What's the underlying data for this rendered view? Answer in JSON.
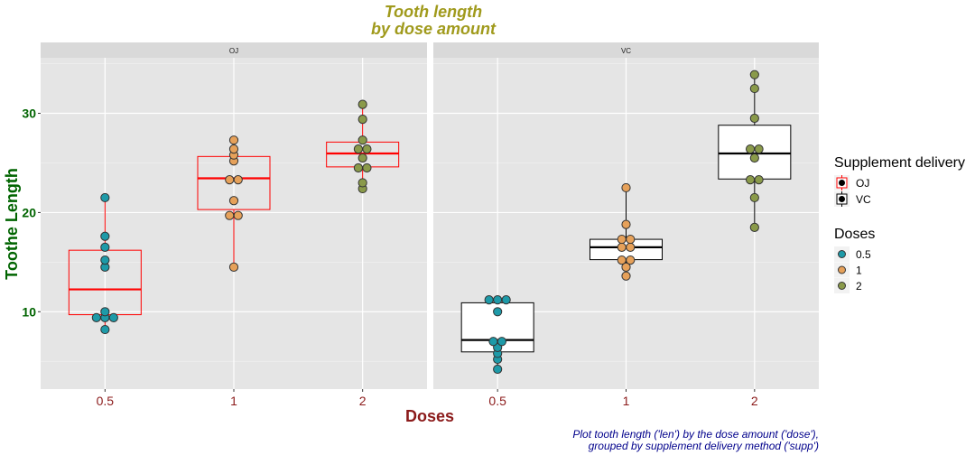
{
  "chart_data": {
    "type": "boxplot",
    "title_lines": [
      "Tooth length",
      "by dose amount"
    ],
    "title_color": "#A09A1C",
    "xlabel": "Doses",
    "xlabel_color": "#8B1A1A",
    "ylabel": "Toothe Length",
    "ylabel_color": "#006400",
    "ytick_color": "#006400",
    "xtick_color": "#8B1A1A",
    "caption_lines": [
      "Plot tooth length ('len') by the dose amount ('dose'),",
      "grouped by supplement delivery method ('supp')"
    ],
    "caption_color": "#00008B",
    "ylim": [
      2.2,
      35.6
    ],
    "yticks": [
      10,
      20,
      30
    ],
    "categories": [
      "0.5",
      "1",
      "2"
    ],
    "panel_background": "#E5E5E5",
    "grid": true,
    "legend_position": "right",
    "panels": [
      {
        "label": "OJ",
        "box_color": "#FF0000",
        "groups": [
          {
            "dose": "0.5",
            "values": [
              15.2,
              21.5,
              17.6,
              9.7,
              14.5,
              10.0,
              8.2,
              9.4,
              16.5,
              9.7
            ],
            "q1": 9.7,
            "median": 12.25,
            "q3": 16.2,
            "whisker_low": 8.2,
            "whisker_high": 21.5
          },
          {
            "dose": "1",
            "values": [
              19.7,
              23.3,
              23.6,
              26.4,
              20.0,
              25.2,
              25.8,
              21.2,
              14.5,
              27.3
            ],
            "q1": 20.3,
            "median": 23.45,
            "q3": 25.65,
            "whisker_low": 14.5,
            "whisker_high": 27.3
          },
          {
            "dose": "2",
            "values": [
              25.5,
              26.4,
              22.4,
              24.5,
              24.8,
              30.9,
              26.4,
              27.3,
              29.4,
              23.0
            ],
            "q1": 24.6,
            "median": 25.95,
            "q3": 27.1,
            "whisker_low": 22.4,
            "whisker_high": 30.9
          }
        ]
      },
      {
        "label": "VC",
        "box_color": "#000000",
        "groups": [
          {
            "dose": "0.5",
            "values": [
              4.2,
              11.5,
              7.3,
              5.8,
              6.4,
              10.0,
              11.2,
              11.2,
              5.2,
              7.0
            ],
            "q1": 5.95,
            "median": 7.15,
            "q3": 10.9,
            "whisker_low": 4.2,
            "whisker_high": 11.5
          },
          {
            "dose": "1",
            "values": [
              16.5,
              16.5,
              15.2,
              17.3,
              22.5,
              17.3,
              13.6,
              14.5,
              18.8,
              15.5
            ],
            "q1": 15.25,
            "median": 16.5,
            "q3": 17.3,
            "whisker_low": 13.6,
            "whisker_high": 22.5
          },
          {
            "dose": "2",
            "values": [
              23.6,
              18.5,
              33.9,
              25.5,
              26.4,
              32.5,
              26.7,
              21.5,
              23.3,
              29.5
            ],
            "q1": 23.38,
            "median": 25.95,
            "q3": 28.8,
            "whisker_low": 18.5,
            "whisker_high": 33.9
          }
        ]
      }
    ],
    "dose_colors": {
      "0.5": "#1E9AA8",
      "1": "#E6A15A",
      "2": "#8A9A4A"
    },
    "legend": {
      "supp_title": "Supplement delivery",
      "supp_items": [
        {
          "label": "OJ",
          "color": "#FF0000"
        },
        {
          "label": "VC",
          "color": "#000000"
        }
      ],
      "dose_title": "Doses",
      "dose_items": [
        {
          "label": "0.5",
          "color": "#1E9AA8"
        },
        {
          "label": "1",
          "color": "#E6A15A"
        },
        {
          "label": "2",
          "color": "#8A9A4A"
        }
      ]
    }
  }
}
